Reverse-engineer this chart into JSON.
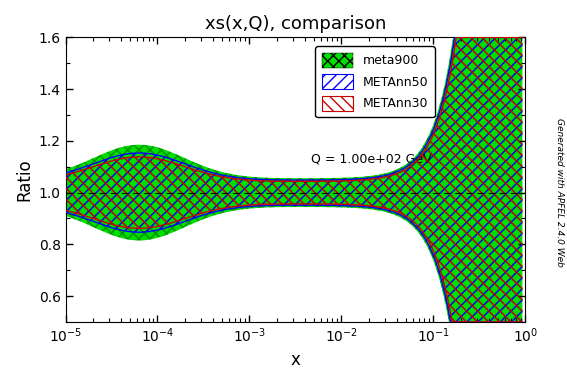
{
  "title": "xs(x,Q), comparison",
  "xlabel": "x",
  "ylabel": "Ratio",
  "Q_label": "Q = 1.00e+02 GeV",
  "xlim": [
    1e-05,
    1.0
  ],
  "ylim": [
    0.5,
    1.6
  ],
  "yticks": [
    0.6,
    0.8,
    1.0,
    1.2,
    1.4,
    1.6
  ],
  "hline_y": 1.0,
  "side_label": "Generated with APFEL 2.4.0 Web",
  "legend_entries": [
    "meta900",
    "METAnn50",
    "METAnn30"
  ],
  "green_color": "#00dd00",
  "blue_color": "#0000ff",
  "red_color": "#cc0000"
}
